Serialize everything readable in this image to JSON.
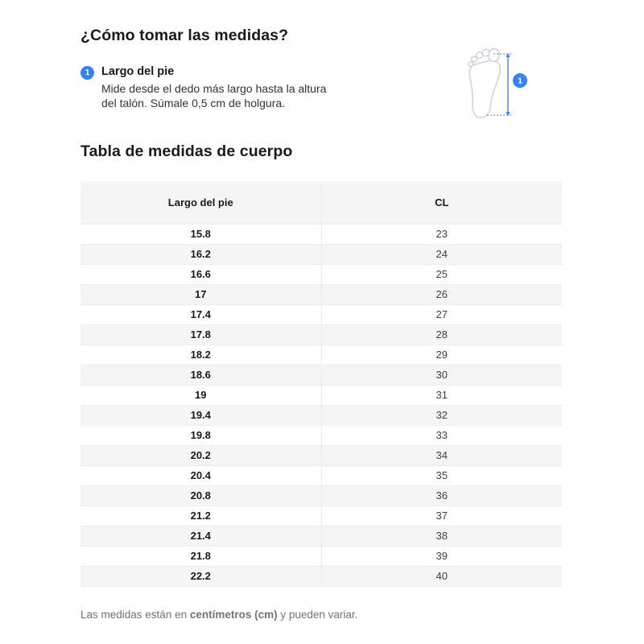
{
  "page": {
    "title": "¿Cómo tomar las medidas?",
    "table_title": "Tabla de medidas de cuerpo"
  },
  "colors": {
    "accent_blue": "#3483fa",
    "zebra_gray": "#f5f5f5",
    "border_gray": "#ececec",
    "text_dark": "#1a1a1a",
    "text_gray": "#737373",
    "foot_outline_gray": "#c6ccd4"
  },
  "steps": [
    {
      "number": "1",
      "label": "Largo del pie",
      "description": "Mide desde el dedo más largo hasta la altura del talón. Súmale 0,5 cm de holgura."
    }
  ],
  "figure": {
    "badge": "1"
  },
  "table": {
    "columns": [
      "Largo del pie",
      "CL"
    ],
    "rows": [
      [
        "15.8",
        "23"
      ],
      [
        "16.2",
        "24"
      ],
      [
        "16.6",
        "25"
      ],
      [
        "17",
        "26"
      ],
      [
        "17.4",
        "27"
      ],
      [
        "17.8",
        "28"
      ],
      [
        "18.2",
        "29"
      ],
      [
        "18.6",
        "30"
      ],
      [
        "19",
        "31"
      ],
      [
        "19.4",
        "32"
      ],
      [
        "19.8",
        "33"
      ],
      [
        "20.2",
        "34"
      ],
      [
        "20.4",
        "35"
      ],
      [
        "20.8",
        "36"
      ],
      [
        "21.2",
        "37"
      ],
      [
        "21.4",
        "38"
      ],
      [
        "21.8",
        "39"
      ],
      [
        "22.2",
        "40"
      ]
    ]
  },
  "footnote": {
    "prefix": "Las medidas están en ",
    "bold": "centímetros (cm)",
    "suffix": " y pueden variar."
  }
}
